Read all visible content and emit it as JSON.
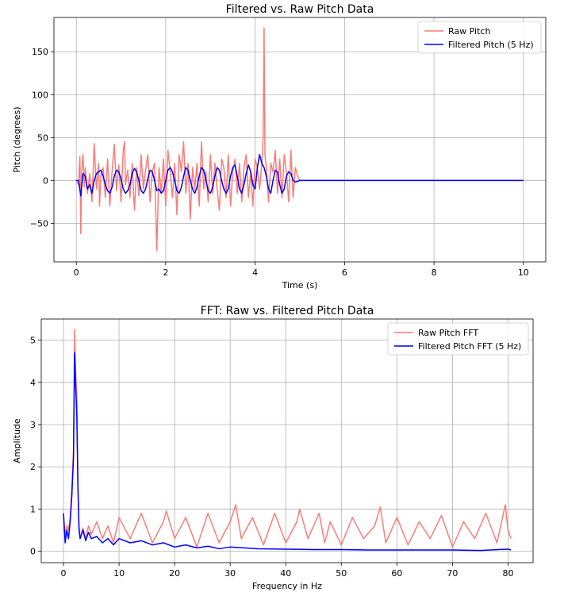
{
  "chart_data": [
    {
      "type": "line",
      "title": "Filtered vs. Raw Pitch Data",
      "xlabel": "Time (s)",
      "ylabel": "Pitch (degrees)",
      "xlim": [
        -0.5,
        10.5
      ],
      "ylim": [
        -95,
        190
      ],
      "xticks": [
        0,
        2,
        4,
        6,
        8,
        10
      ],
      "xtick_labels": [
        "0",
        "2",
        "4",
        "6",
        "8",
        "10"
      ],
      "yticks": [
        -50,
        0,
        50,
        100,
        150
      ],
      "ytick_labels": [
        "−50",
        "0",
        "50",
        "100",
        "150"
      ],
      "grid": true,
      "legend_placement": "top-right",
      "series": [
        {
          "name": "Raw Pitch",
          "color": "#f87d7a",
          "x": [
            0.0,
            0.05,
            0.08,
            0.1,
            0.12,
            0.15,
            0.18,
            0.2,
            0.25,
            0.3,
            0.35,
            0.4,
            0.45,
            0.5,
            0.52,
            0.55,
            0.6,
            0.65,
            0.7,
            0.75,
            0.8,
            0.85,
            0.9,
            0.95,
            1.0,
            1.05,
            1.08,
            1.1,
            1.15,
            1.2,
            1.25,
            1.3,
            1.35,
            1.4,
            1.45,
            1.5,
            1.55,
            1.6,
            1.65,
            1.7,
            1.75,
            1.8,
            1.85,
            1.9,
            1.95,
            2.0,
            2.05,
            2.1,
            2.15,
            2.2,
            2.25,
            2.3,
            2.35,
            2.4,
            2.45,
            2.5,
            2.55,
            2.6,
            2.65,
            2.7,
            2.75,
            2.8,
            2.85,
            2.9,
            2.95,
            3.0,
            3.05,
            3.1,
            3.15,
            3.2,
            3.25,
            3.3,
            3.35,
            3.4,
            3.45,
            3.5,
            3.55,
            3.6,
            3.65,
            3.7,
            3.75,
            3.8,
            3.85,
            3.9,
            3.95,
            4.0,
            4.05,
            4.1,
            4.15,
            4.18,
            4.2,
            4.22,
            4.25,
            4.3,
            4.35,
            4.4,
            4.45,
            4.5,
            4.55,
            4.6,
            4.65,
            4.7,
            4.75,
            4.8,
            4.85,
            4.9,
            4.95,
            5.0,
            6.0,
            8.0,
            10.0
          ],
          "y": [
            0,
            -5,
            28,
            -62,
            12,
            30,
            -8,
            15,
            -15,
            8,
            -25,
            43,
            -10,
            20,
            -30,
            5,
            15,
            -20,
            25,
            -30,
            10,
            42,
            -12,
            18,
            -25,
            35,
            45,
            -5,
            12,
            -20,
            20,
            -35,
            15,
            -18,
            30,
            -10,
            12,
            30,
            -25,
            10,
            20,
            -82,
            15,
            -15,
            25,
            -30,
            35,
            10,
            -20,
            20,
            -40,
            30,
            10,
            45,
            -15,
            20,
            -45,
            15,
            -10,
            20,
            -30,
            45,
            -10,
            10,
            -25,
            30,
            -15,
            20,
            -10,
            -35,
            25,
            15,
            -20,
            30,
            -30,
            10,
            25,
            -15,
            20,
            -25,
            15,
            30,
            -20,
            10,
            -30,
            25,
            15,
            -10,
            20,
            50,
            178,
            30,
            15,
            -25,
            20,
            10,
            35,
            -15,
            25,
            -20,
            30,
            10,
            -25,
            35,
            -20,
            15,
            5,
            0,
            0,
            0,
            0
          ]
        },
        {
          "name": "Filtered Pitch (5 Hz)",
          "color": "#0000ff",
          "x": [
            0.0,
            0.05,
            0.1,
            0.15,
            0.2,
            0.25,
            0.3,
            0.35,
            0.4,
            0.45,
            0.5,
            0.55,
            0.6,
            0.65,
            0.7,
            0.75,
            0.8,
            0.85,
            0.9,
            0.95,
            1.0,
            1.05,
            1.1,
            1.15,
            1.2,
            1.25,
            1.3,
            1.35,
            1.4,
            1.45,
            1.5,
            1.55,
            1.6,
            1.65,
            1.7,
            1.75,
            1.8,
            1.85,
            1.9,
            1.95,
            2.0,
            2.05,
            2.1,
            2.15,
            2.2,
            2.25,
            2.3,
            2.35,
            2.4,
            2.45,
            2.5,
            2.55,
            2.6,
            2.65,
            2.7,
            2.75,
            2.8,
            2.85,
            2.9,
            2.95,
            3.0,
            3.05,
            3.1,
            3.15,
            3.2,
            3.25,
            3.3,
            3.35,
            3.4,
            3.45,
            3.5,
            3.55,
            3.6,
            3.65,
            3.7,
            3.75,
            3.8,
            3.85,
            3.9,
            3.95,
            4.0,
            4.05,
            4.1,
            4.15,
            4.2,
            4.25,
            4.3,
            4.35,
            4.4,
            4.45,
            4.5,
            4.55,
            4.6,
            4.65,
            4.7,
            4.75,
            4.8,
            4.85,
            4.9,
            4.95,
            5.0,
            6.0,
            8.0,
            10.0
          ],
          "y": [
            0,
            0,
            -18,
            8,
            5,
            -10,
            -5,
            -15,
            0,
            8,
            10,
            12,
            5,
            -5,
            -12,
            -15,
            -8,
            5,
            12,
            10,
            2,
            -10,
            -15,
            -12,
            -5,
            8,
            14,
            10,
            0,
            -12,
            -15,
            -10,
            2,
            12,
            10,
            0,
            -12,
            -10,
            -15,
            -12,
            0,
            12,
            15,
            10,
            0,
            -12,
            -15,
            -8,
            5,
            15,
            12,
            0,
            -10,
            -15,
            -8,
            5,
            15,
            12,
            0,
            -12,
            -15,
            -8,
            5,
            15,
            12,
            0,
            -10,
            -15,
            -10,
            5,
            15,
            18,
            5,
            -10,
            -15,
            -5,
            8,
            18,
            10,
            -5,
            -10,
            15,
            30,
            20,
            15,
            5,
            -10,
            -15,
            0,
            12,
            10,
            -5,
            -15,
            -10,
            5,
            10,
            8,
            0,
            -2,
            -1,
            0,
            0,
            0,
            0
          ]
        }
      ]
    },
    {
      "type": "line",
      "title": "FFT: Raw vs. Filtered Pitch Data",
      "xlabel": "Frequency in Hz",
      "ylabel": "Amplitude",
      "xlim": [
        -4,
        84.5
      ],
      "ylim": [
        -0.27,
        5.5
      ],
      "xticks": [
        0,
        10,
        20,
        30,
        40,
        50,
        60,
        70,
        80
      ],
      "xtick_labels": [
        "0",
        "10",
        "20",
        "30",
        "40",
        "50",
        "60",
        "70",
        "80"
      ],
      "yticks": [
        0,
        1,
        2,
        3,
        4,
        5
      ],
      "ytick_labels": [
        "0",
        "1",
        "2",
        "3",
        "4",
        "5"
      ],
      "grid": true,
      "legend_placement": "top-right",
      "series": [
        {
          "name": "Raw Pitch FFT",
          "color": "#f87d7a",
          "x": [
            0.0,
            0.3,
            0.6,
            0.9,
            1.2,
            1.5,
            1.8,
            2.0,
            2.2,
            2.4,
            2.6,
            2.8,
            3.0,
            3.5,
            4.0,
            4.5,
            5.0,
            6.0,
            7.0,
            8.0,
            9.0,
            10.0,
            12.0,
            14.0,
            16.0,
            18.0,
            18.5,
            20.0,
            22.0,
            24.0,
            26.0,
            28.0,
            30.0,
            31.0,
            32.0,
            34.0,
            36.0,
            38.0,
            40.0,
            42.0,
            42.5,
            44.0,
            46.0,
            47.0,
            48.0,
            50.0,
            52.0,
            54.0,
            56.0,
            57.0,
            58.0,
            60.0,
            62.0,
            64.0,
            66.0,
            68.0,
            70.0,
            72.0,
            74.0,
            76.0,
            78.0,
            79.5,
            80.0,
            80.5
          ],
          "y": [
            0.9,
            0.35,
            0.6,
            0.5,
            0.8,
            1.5,
            2.4,
            5.25,
            4.2,
            3.7,
            1.6,
            0.6,
            0.3,
            0.55,
            0.3,
            0.6,
            0.4,
            0.7,
            0.3,
            0.6,
            0.2,
            0.8,
            0.3,
            0.9,
            0.2,
            0.7,
            0.95,
            0.3,
            0.8,
            0.1,
            0.9,
            0.2,
            0.7,
            1.1,
            0.3,
            0.8,
            0.15,
            0.9,
            0.2,
            0.7,
            1.0,
            0.3,
            0.9,
            0.2,
            0.7,
            0.15,
            0.8,
            0.3,
            0.6,
            1.05,
            0.2,
            0.8,
            0.15,
            0.7,
            0.3,
            0.85,
            0.1,
            0.7,
            0.3,
            0.9,
            0.2,
            1.1,
            0.5,
            0.3
          ]
        },
        {
          "name": "Filtered Pitch FFT (5 Hz)",
          "color": "#0000ff",
          "x": [
            0.0,
            0.3,
            0.6,
            0.9,
            1.2,
            1.5,
            1.8,
            2.0,
            2.2,
            2.4,
            2.6,
            2.8,
            3.0,
            3.5,
            4.0,
            4.5,
            5.0,
            6.0,
            7.0,
            8.0,
            9.0,
            10.0,
            12.0,
            14.0,
            16.0,
            18.0,
            20.0,
            22.0,
            24.0,
            26.0,
            28.0,
            30.0,
            35.0,
            40.0,
            45.0,
            50.0,
            55.0,
            60.0,
            65.0,
            70.0,
            75.0,
            80.0,
            80.5
          ],
          "y": [
            0.9,
            0.2,
            0.5,
            0.3,
            0.7,
            1.3,
            2.2,
            4.7,
            3.9,
            3.2,
            1.5,
            0.5,
            0.3,
            0.5,
            0.25,
            0.45,
            0.3,
            0.35,
            0.2,
            0.3,
            0.15,
            0.3,
            0.2,
            0.25,
            0.15,
            0.2,
            0.1,
            0.15,
            0.08,
            0.12,
            0.06,
            0.1,
            0.06,
            0.05,
            0.04,
            0.04,
            0.03,
            0.03,
            0.03,
            0.03,
            0.02,
            0.05,
            0.03
          ]
        }
      ]
    }
  ]
}
